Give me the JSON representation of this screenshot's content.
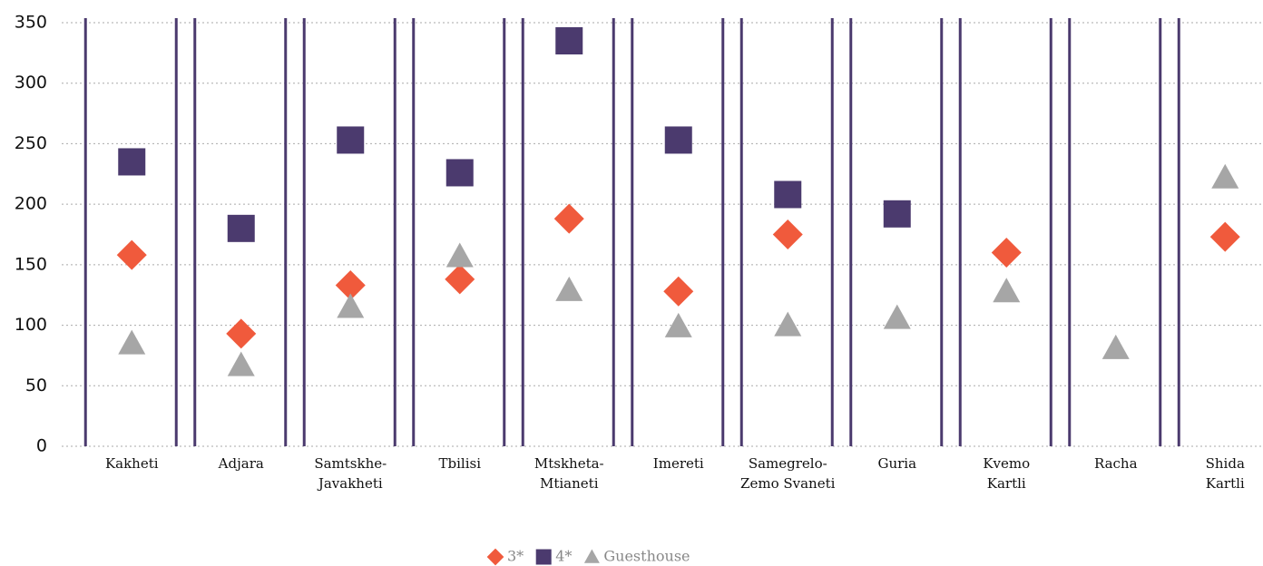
{
  "chart_data": {
    "type": "scatter",
    "categories": [
      "Kakheti",
      "Adjara",
      "Samtskhe-\nJavakheti",
      "Tbilisi",
      "Mtskheta-\nMtianeti",
      "Imereti",
      "Samegrelo-\nZemo Svaneti",
      "Guria",
      "Kvemo\nKartli",
      "Racha",
      "Shida\nKartli"
    ],
    "series": [
      {
        "name": "3*",
        "color": "#f05a3c",
        "marker": "diamond",
        "values": [
          158,
          93,
          133,
          138,
          188,
          128,
          175,
          null,
          160,
          null,
          173
        ]
      },
      {
        "name": "4*",
        "color": "#4b3a6e",
        "marker": "square",
        "values": [
          235,
          180,
          253,
          226,
          335,
          253,
          208,
          192,
          null,
          null,
          null
        ]
      },
      {
        "name": "Guesthouse",
        "color": "#a6a6a6",
        "marker": "triangle",
        "values": [
          85,
          67,
          115,
          157,
          129,
          99,
          100,
          106,
          128,
          81,
          222
        ]
      }
    ],
    "ylim": [
      0,
      350
    ],
    "yticks": [
      0,
      50,
      100,
      150,
      200,
      250,
      300,
      350
    ],
    "grid": true,
    "legend": "bottom"
  }
}
